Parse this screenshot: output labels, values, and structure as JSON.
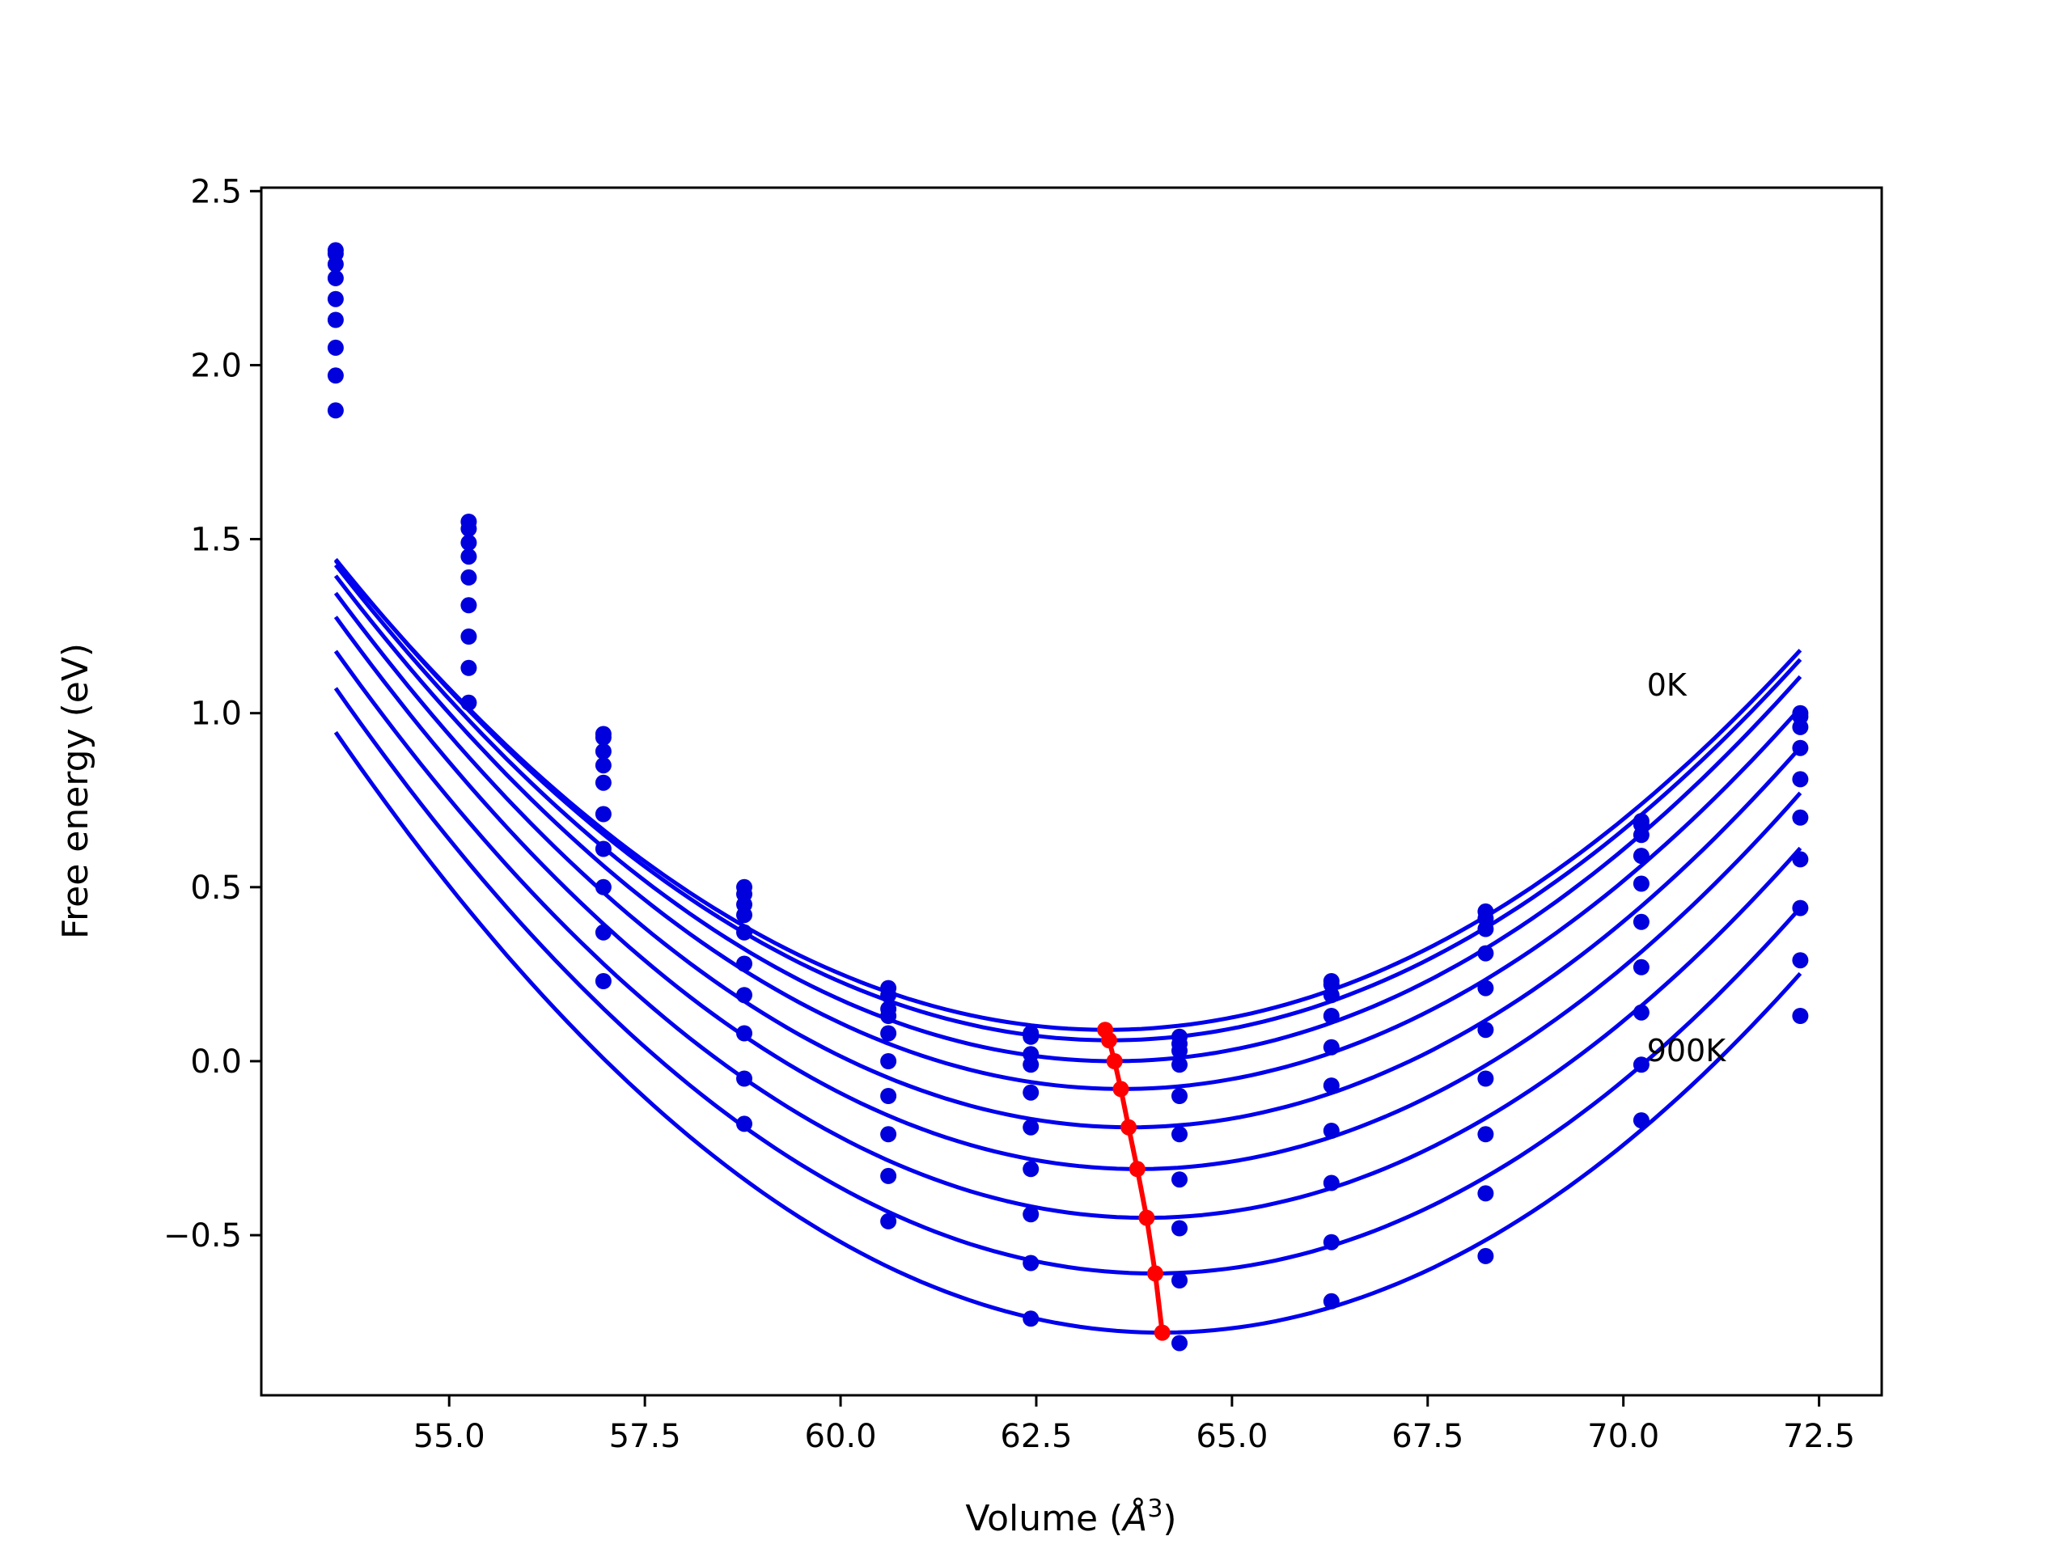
{
  "chart_data": {
    "type": "line",
    "title": "",
    "xlabel": "Volume (Å³)",
    "xlabel_parts": {
      "main": "Volume (",
      "symbol": "Å",
      "sup": "3",
      "close": ")"
    },
    "ylabel": "Free energy (eV)",
    "xlim": [
      52.6,
      73.3
    ],
    "ylim": [
      -0.96,
      2.51
    ],
    "xticks": [
      55.0,
      57.5,
      60.0,
      62.5,
      65.0,
      67.5,
      70.0,
      72.5
    ],
    "xtick_labels": [
      "55.0",
      "57.5",
      "60.0",
      "62.5",
      "65.0",
      "67.5",
      "70.0",
      "72.5"
    ],
    "yticks": [
      -0.5,
      0.0,
      0.5,
      1.0,
      1.5,
      2.0,
      2.5
    ],
    "ytick_labels": [
      "−0.5",
      "0.0",
      "0.5",
      "1.0",
      "1.5",
      "2.0",
      "2.5"
    ],
    "grid": false,
    "colors": {
      "curve": "#0000ee",
      "points": "#0000dd",
      "minima": "#ff0000"
    },
    "volumes": [
      53.55,
      55.25,
      56.97,
      58.77,
      60.61,
      62.43,
      64.33,
      66.27,
      68.24,
      70.23,
      72.26
    ],
    "series": [
      {
        "values": [
          2.33,
          1.55,
          0.94,
          0.5,
          0.21,
          0.08,
          0.07,
          0.23,
          0.43,
          0.69,
          1.0
        ]
      },
      {
        "values": [
          2.32,
          1.53,
          0.93,
          0.48,
          0.19,
          0.07,
          0.05,
          0.22,
          0.41,
          0.68,
          0.99
        ]
      },
      {
        "values": [
          2.29,
          1.49,
          0.89,
          0.45,
          0.15,
          0.02,
          0.03,
          0.19,
          0.38,
          0.65,
          0.96
        ]
      },
      {
        "values": [
          2.25,
          1.45,
          0.85,
          0.42,
          0.13,
          -0.01,
          -0.01,
          0.13,
          0.31,
          0.59,
          0.9
        ]
      },
      {
        "values": [
          2.19,
          1.39,
          0.8,
          0.37,
          0.08,
          -0.09,
          -0.1,
          0.04,
          0.21,
          0.51,
          0.81
        ]
      },
      {
        "values": [
          2.13,
          1.31,
          0.71,
          0.28,
          0.0,
          -0.19,
          -0.21,
          -0.07,
          0.09,
          0.4,
          0.7
        ]
      },
      {
        "values": [
          2.05,
          1.22,
          0.61,
          0.19,
          -0.1,
          -0.31,
          -0.34,
          -0.2,
          -0.05,
          0.27,
          0.58
        ]
      },
      {
        "values": [
          1.97,
          1.13,
          0.5,
          0.08,
          -0.21,
          -0.44,
          -0.48,
          -0.35,
          -0.21,
          0.14,
          0.44
        ]
      },
      {
        "values": [
          1.87,
          1.03,
          0.37,
          -0.05,
          -0.33,
          -0.58,
          -0.63,
          -0.52,
          -0.38,
          -0.01,
          0.29
        ]
      },
      {
        "values": [
          null,
          null,
          0.23,
          -0.18,
          -0.46,
          -0.74,
          -0.81,
          -0.69,
          -0.56,
          -0.17,
          0.13
        ]
      }
    ],
    "fit_curves": [
      {
        "x_start": 53.55,
        "x_end": 72.26,
        "vmin": 63.4,
        "emin": 0.09,
        "coef": 0.0139
      },
      {
        "x_start": 53.55,
        "x_end": 72.26,
        "vmin": 63.45,
        "emin": 0.06,
        "coef": 0.0141
      },
      {
        "x_start": 53.55,
        "x_end": 72.26,
        "vmin": 63.5,
        "emin": 0.0,
        "coef": 0.0144
      },
      {
        "x_start": 53.55,
        "x_end": 72.26,
        "vmin": 63.6,
        "emin": -0.08,
        "coef": 0.0146
      },
      {
        "x_start": 53.55,
        "x_end": 72.26,
        "vmin": 63.7,
        "emin": -0.19,
        "coef": 0.0149
      },
      {
        "x_start": 53.55,
        "x_end": 72.26,
        "vmin": 63.8,
        "emin": -0.31,
        "coef": 0.0151
      },
      {
        "x_start": 53.55,
        "x_end": 72.26,
        "vmin": 63.9,
        "emin": -0.45,
        "coef": 0.0152
      },
      {
        "x_start": 53.55,
        "x_end": 72.26,
        "vmin": 64.0,
        "emin": -0.61,
        "coef": 0.0154
      },
      {
        "x_start": 53.55,
        "x_end": 72.26,
        "vmin": 64.1,
        "emin": -0.78,
        "coef": 0.0155
      }
    ],
    "minima": {
      "x": [
        63.38,
        63.43,
        63.5,
        63.58,
        63.68,
        63.79,
        63.91,
        64.02,
        64.11
      ],
      "y": [
        0.09,
        0.06,
        0.0,
        -0.08,
        -0.19,
        -0.31,
        -0.45,
        -0.61,
        -0.78
      ]
    },
    "annotations": [
      {
        "text": "0K",
        "x": 70.3,
        "y": 1.05
      },
      {
        "text": "900K",
        "x": 70.3,
        "y": 0.0
      }
    ]
  }
}
